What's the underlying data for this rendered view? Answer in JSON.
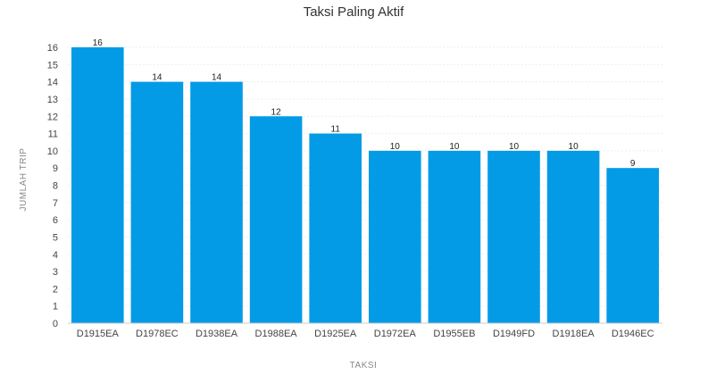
{
  "chart_data": {
    "type": "bar",
    "title": "Taksi Paling Aktif",
    "xlabel": "TAKSI",
    "ylabel": "JUMLAH TRIP",
    "categories": [
      "D1915EA",
      "D1978EC",
      "D1938EA",
      "D1988EA",
      "D1925EA",
      "D1972EA",
      "D1955EB",
      "D1949FD",
      "D1918EA",
      "D1946EC"
    ],
    "values": [
      16,
      14,
      14,
      12,
      11,
      10,
      10,
      10,
      10,
      9
    ],
    "ylim": [
      0,
      16
    ],
    "yticks": [
      0,
      1,
      2,
      3,
      4,
      5,
      6,
      7,
      8,
      9,
      10,
      11,
      12,
      13,
      14,
      15,
      16
    ],
    "grid": true,
    "bar_color": "#039be5",
    "data_labels": true
  }
}
